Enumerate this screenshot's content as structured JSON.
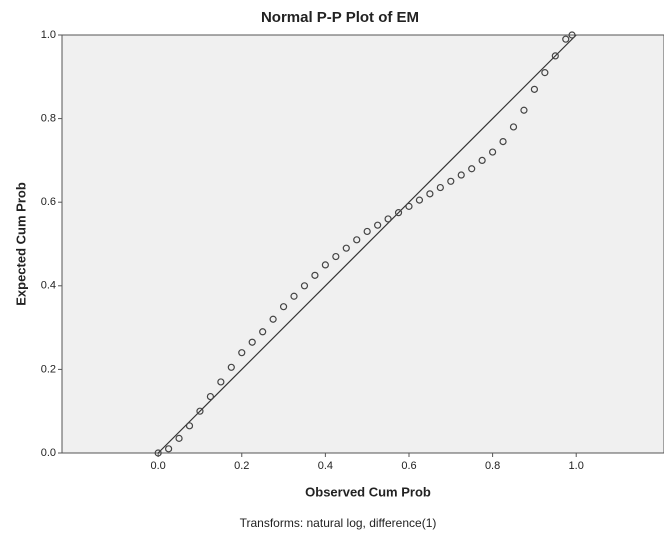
{
  "chart_data": {
    "type": "scatter",
    "title": "Normal P-P Plot of EM",
    "x_label": "Observed Cum Prob",
    "y_label": "Expected Cum Prob",
    "footnote": "Transforms: natural log, difference(1)",
    "color": "#444444",
    "x": [
      0,
      0.025,
      0.05,
      0.075,
      0.1,
      0.125,
      0.15,
      0.175,
      0.2,
      0.225,
      0.25,
      0.275,
      0.3,
      0.325,
      0.35,
      0.375,
      0.4,
      0.425,
      0.45,
      0.475,
      0.5,
      0.525,
      0.55,
      0.575,
      0.6,
      0.625,
      0.65,
      0.675,
      0.7,
      0.725,
      0.75,
      0.775,
      0.8,
      0.825,
      0.85,
      0.875,
      0.9,
      0.925,
      0.95,
      0.975,
      0.99
    ],
    "values": [
      0,
      0.01,
      0.035,
      0.065,
      0.1,
      0.135,
      0.17,
      0.205,
      0.24,
      0.265,
      0.29,
      0.32,
      0.35,
      0.375,
      0.4,
      0.425,
      0.45,
      0.47,
      0.49,
      0.51,
      0.53,
      0.545,
      0.56,
      0.575,
      0.59,
      0.605,
      0.62,
      0.635,
      0.65,
      0.665,
      0.68,
      0.7,
      0.72,
      0.745,
      0.78,
      0.82,
      0.87,
      0.91,
      0.95,
      0.99,
      1.0
    ],
    "reference_line": {
      "x": [
        0,
        1
      ],
      "y": [
        0,
        1
      ]
    },
    "xlim": [
      -0.23,
      1.21
    ],
    "ylim": [
      0,
      1
    ],
    "xticks": [
      {
        "value": 0,
        "label": "0.0"
      },
      {
        "value": 0.2,
        "label": "0.2"
      },
      {
        "value": 0.4,
        "label": "0.4"
      },
      {
        "value": 0.6,
        "label": "0.6"
      },
      {
        "value": 0.8,
        "label": "0.8"
      },
      {
        "value": 1,
        "label": "1.0"
      }
    ],
    "yticks": [
      {
        "value": 0,
        "label": "0.0"
      },
      {
        "value": 0.2,
        "label": "0.2"
      },
      {
        "value": 0.4,
        "label": "0.4"
      },
      {
        "value": 0.6,
        "label": "0.6"
      },
      {
        "value": 0.8,
        "label": "0.8"
      },
      {
        "value": 1,
        "label": "1.0"
      }
    ]
  }
}
